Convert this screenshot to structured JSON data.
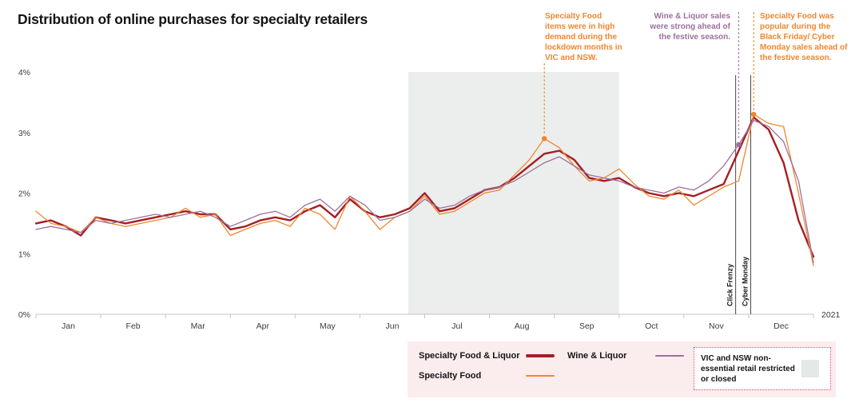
{
  "title": "Distribution of online purchases for specialty retailers",
  "colors": {
    "specialty_food_liquor": "#a41e23",
    "specialty_food": "#f0862e",
    "wine_liquor": "#9e6f9e",
    "shade": "#ebeeec",
    "axis": "#c4c4c4",
    "event_line": "#1a1a1a"
  },
  "chart_data": {
    "type": "line",
    "title": "Distribution of online purchases for specialty retailers",
    "xlabel": "",
    "ylabel": "",
    "x_unit": "week of year 2021",
    "months": [
      "Jan",
      "Feb",
      "Mar",
      "Apr",
      "May",
      "Jun",
      "Jul",
      "Aug",
      "Sep",
      "Oct",
      "Nov",
      "Dec"
    ],
    "year_label": "2021",
    "ylim": [
      0,
      4
    ],
    "yticks": [
      "0%",
      "1%",
      "2%",
      "3%",
      "4%"
    ],
    "grid": false,
    "legend_position": "bottom-right",
    "series": [
      {
        "name": "Specialty Food & Liquor",
        "color_key": "specialty_food_liquor",
        "width": 2.4,
        "values": [
          1.5,
          1.55,
          1.45,
          1.3,
          1.6,
          1.55,
          1.5,
          1.55,
          1.6,
          1.65,
          1.7,
          1.65,
          1.65,
          1.4,
          1.45,
          1.55,
          1.6,
          1.55,
          1.7,
          1.8,
          1.6,
          1.9,
          1.7,
          1.6,
          1.65,
          1.75,
          2.0,
          1.7,
          1.75,
          1.9,
          2.05,
          2.1,
          2.25,
          2.45,
          2.65,
          2.7,
          2.55,
          2.25,
          2.2,
          2.25,
          2.1,
          2.0,
          1.95,
          2.0,
          1.95,
          2.05,
          2.15,
          2.7,
          3.25,
          3.05,
          2.5,
          1.55,
          0.95
        ]
      },
      {
        "name": "Specialty Food",
        "color_key": "specialty_food",
        "width": 1.3,
        "values": [
          1.7,
          1.5,
          1.45,
          1.35,
          1.6,
          1.5,
          1.45,
          1.5,
          1.55,
          1.6,
          1.75,
          1.6,
          1.65,
          1.3,
          1.4,
          1.5,
          1.55,
          1.45,
          1.75,
          1.65,
          1.4,
          1.95,
          1.7,
          1.4,
          1.6,
          1.7,
          1.95,
          1.65,
          1.7,
          1.85,
          2.0,
          2.05,
          2.3,
          2.55,
          2.9,
          2.75,
          2.45,
          2.2,
          2.25,
          2.4,
          2.15,
          1.95,
          1.9,
          2.05,
          1.8,
          1.95,
          2.1,
          2.2,
          3.3,
          3.15,
          3.1,
          2.0,
          0.8
        ]
      },
      {
        "name": "Wine & Liquor",
        "color_key": "wine_liquor",
        "width": 1.3,
        "values": [
          1.4,
          1.45,
          1.4,
          1.35,
          1.55,
          1.5,
          1.55,
          1.6,
          1.65,
          1.6,
          1.65,
          1.7,
          1.6,
          1.45,
          1.55,
          1.65,
          1.7,
          1.6,
          1.8,
          1.9,
          1.7,
          1.95,
          1.8,
          1.55,
          1.6,
          1.7,
          1.9,
          1.75,
          1.8,
          1.95,
          2.05,
          2.1,
          2.2,
          2.35,
          2.5,
          2.6,
          2.45,
          2.3,
          2.25,
          2.2,
          2.1,
          2.05,
          2.0,
          2.1,
          2.05,
          2.2,
          2.45,
          2.8,
          3.2,
          3.1,
          2.85,
          2.2,
          0.85
        ]
      }
    ],
    "shaded_region": {
      "from_week": 24.9,
      "to_week": 39
    },
    "event_lines": [
      {
        "label": "Click Frenzy",
        "week": 46.8
      },
      {
        "label": "Cyber Monday",
        "week": 47.8
      }
    ],
    "annotations": [
      {
        "text": "Specialty Food items were in high demand during the lockdown months in VIC and NSW.",
        "week": 34,
        "value": 2.9,
        "color_key": "specialty_food",
        "line_top": 80
      },
      {
        "text": "Wine & Liquor sales were strong ahead of the festive season.",
        "week": 47,
        "value": 2.8,
        "color_key": "wine_liquor",
        "line_top": 16
      },
      {
        "text": "Specialty Food was popular during the Black Friday/ Cyber Monday sales ahead of the festive season.",
        "week": 48,
        "value": 3.3,
        "color_key": "specialty_food",
        "line_top": 16
      }
    ]
  },
  "legend": {
    "restriction_note": "VIC and NSW non-essential retail restricted or closed"
  }
}
